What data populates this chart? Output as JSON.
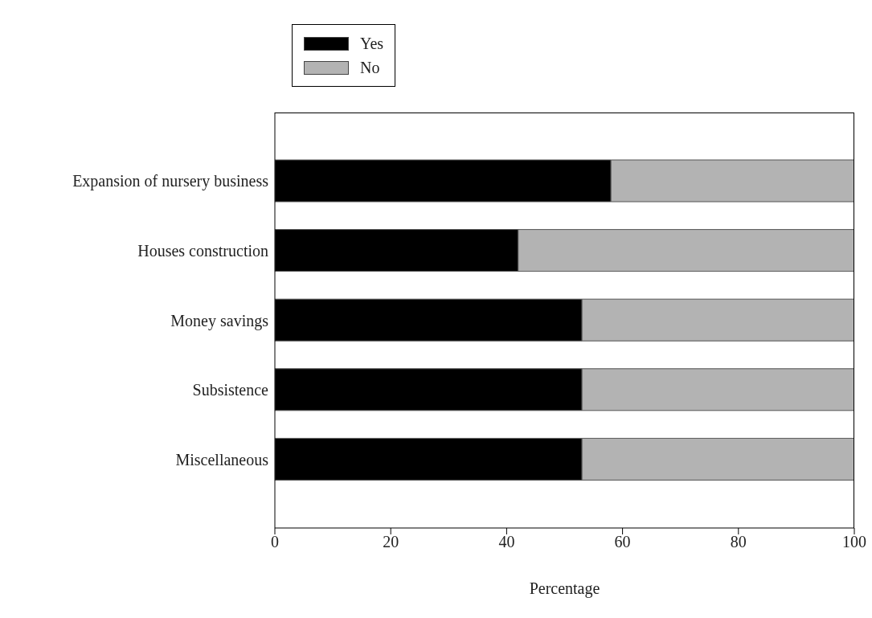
{
  "chart_data": {
    "type": "bar",
    "orientation": "horizontal",
    "stacked": true,
    "xlabel": "Percentage",
    "categories": [
      "Expansion of nursery business",
      "Houses construction",
      "Money savings",
      "Subsistence",
      "Miscellaneous"
    ],
    "series": [
      {
        "name": "Yes",
        "color": "#000000",
        "values": [
          58,
          42,
          53,
          53,
          53
        ]
      },
      {
        "name": "No",
        "color": "#b3b3b3",
        "values": [
          42,
          58,
          47,
          47,
          47
        ]
      }
    ],
    "xlim": [
      0,
      100
    ],
    "xticks": [
      0,
      20,
      40,
      60,
      80,
      100
    ],
    "grid": false,
    "legend": "top left"
  }
}
